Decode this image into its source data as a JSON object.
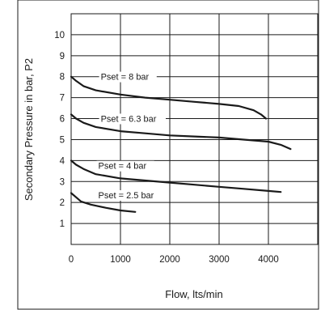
{
  "chart_data": {
    "type": "line",
    "title": "",
    "xlabel": "Flow, lts/min",
    "ylabel": "Secondary Pressure in bar, P2",
    "xlim": [
      0,
      5000
    ],
    "ylim": [
      0,
      11
    ],
    "x_ticks": [
      0,
      1000,
      2000,
      3000,
      4000
    ],
    "y_ticks": [
      1,
      2,
      3,
      4,
      5,
      6,
      7,
      8,
      9,
      10
    ],
    "grid": true,
    "series": [
      {
        "name": "Pset = 8 bar",
        "label_at": [
          600,
          7.85
        ],
        "points": [
          [
            0,
            8.0
          ],
          [
            100,
            7.8
          ],
          [
            250,
            7.55
          ],
          [
            500,
            7.35
          ],
          [
            1000,
            7.15
          ],
          [
            1500,
            7.0
          ],
          [
            2000,
            6.9
          ],
          [
            2500,
            6.8
          ],
          [
            3000,
            6.7
          ],
          [
            3400,
            6.6
          ],
          [
            3700,
            6.4
          ],
          [
            3850,
            6.2
          ],
          [
            3950,
            6.0
          ]
        ]
      },
      {
        "name": "Pset = 6.3 bar",
        "label_at": [
          600,
          5.85
        ],
        "points": [
          [
            0,
            6.2
          ],
          [
            100,
            6.0
          ],
          [
            250,
            5.8
          ],
          [
            500,
            5.6
          ],
          [
            1000,
            5.4
          ],
          [
            1500,
            5.3
          ],
          [
            2000,
            5.2
          ],
          [
            2500,
            5.15
          ],
          [
            3000,
            5.1
          ],
          [
            3500,
            5.0
          ],
          [
            4000,
            4.9
          ],
          [
            4250,
            4.75
          ],
          [
            4450,
            4.55
          ]
        ]
      },
      {
        "name": "Pset = 4 bar",
        "label_at": [
          550,
          3.6
        ],
        "points": [
          [
            0,
            4.0
          ],
          [
            100,
            3.8
          ],
          [
            250,
            3.6
          ],
          [
            500,
            3.35
          ],
          [
            1000,
            3.15
          ],
          [
            1500,
            3.05
          ],
          [
            2000,
            2.95
          ],
          [
            2500,
            2.85
          ],
          [
            3000,
            2.75
          ],
          [
            3500,
            2.65
          ],
          [
            4000,
            2.55
          ],
          [
            4250,
            2.5
          ]
        ]
      },
      {
        "name": "Pset = 2.5 bar",
        "label_at": [
          550,
          2.2
        ],
        "points": [
          [
            0,
            2.45
          ],
          [
            100,
            2.25
          ],
          [
            200,
            2.05
          ],
          [
            400,
            1.9
          ],
          [
            700,
            1.75
          ],
          [
            1000,
            1.62
          ],
          [
            1300,
            1.55
          ]
        ]
      }
    ],
    "colors": {
      "line": "#1a1a1a",
      "grid": "#1a1a1a",
      "background": "#ffffff"
    }
  }
}
